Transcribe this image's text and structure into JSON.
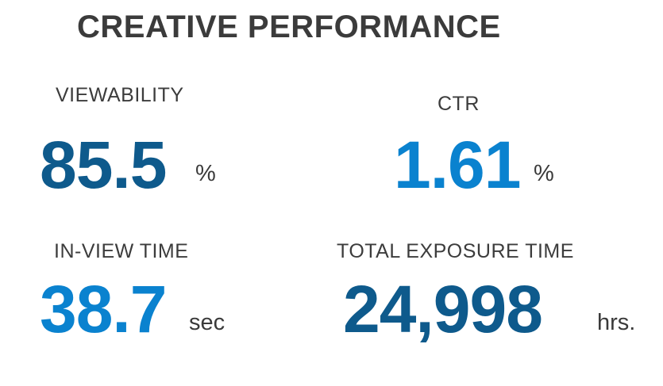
{
  "title": "CREATIVE PERFORMANCE",
  "metrics": {
    "viewability": {
      "label": "VIEWABILITY",
      "value": "85.5",
      "unit": "%"
    },
    "ctr": {
      "label": "CTR",
      "value": "1.61",
      "unit": "%"
    },
    "in_view_time": {
      "label": "IN-VIEW TIME",
      "value": "38.7",
      "unit": "sec"
    },
    "total_exposure_time": {
      "label": "TOTAL EXPOSURE TIME",
      "value": "24,998",
      "unit": "hrs."
    }
  },
  "colors": {
    "dark_blue": "#0e5a8c",
    "bright_blue": "#0a82cf",
    "text_gray": "#3b3b3b"
  }
}
